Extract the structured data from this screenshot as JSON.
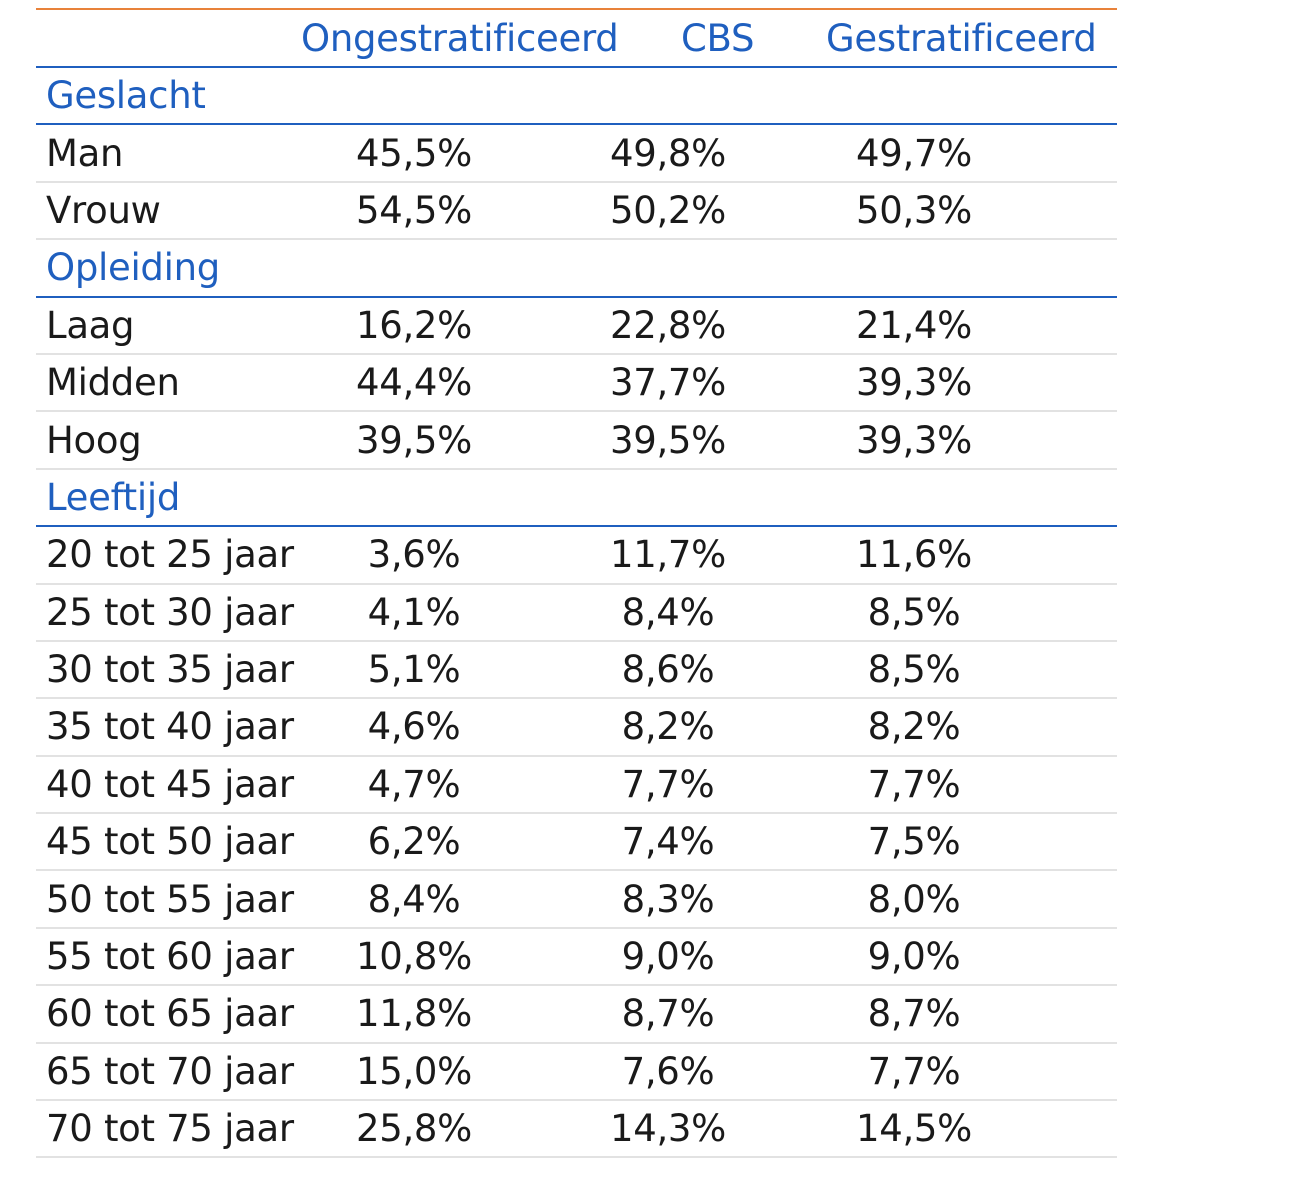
{
  "chart_data": {
    "type": "table",
    "columns": [
      "",
      "Ongestratificeerd",
      "CBS",
      "Gestratificeerd"
    ],
    "colors": {
      "heading": "#1f5fbf",
      "top_rule": "#e8823a",
      "row_rule": "#e2e2e2"
    },
    "sections": [
      {
        "title": "Geslacht",
        "rows": [
          {
            "label": "Man",
            "values": [
              "45,5%",
              "49,8%",
              "49,7%"
            ]
          },
          {
            "label": "Vrouw",
            "values": [
              "54,5%",
              "50,2%",
              "50,3%"
            ]
          }
        ]
      },
      {
        "title": "Opleiding",
        "rows": [
          {
            "label": "Laag",
            "values": [
              "16,2%",
              "22,8%",
              "21,4%"
            ]
          },
          {
            "label": "Midden",
            "values": [
              "44,4%",
              "37,7%",
              "39,3%"
            ]
          },
          {
            "label": "Hoog",
            "values": [
              "39,5%",
              "39,5%",
              "39,3%"
            ]
          }
        ]
      },
      {
        "title": "Leeftijd",
        "rows": [
          {
            "label": "20 tot 25 jaar",
            "values": [
              "3,6%",
              "11,7%",
              "11,6%"
            ]
          },
          {
            "label": "25 tot 30 jaar",
            "values": [
              "4,1%",
              "8,4%",
              "8,5%"
            ]
          },
          {
            "label": "30 tot 35 jaar",
            "values": [
              "5,1%",
              "8,6%",
              "8,5%"
            ]
          },
          {
            "label": "35 tot 40 jaar",
            "values": [
              "4,6%",
              "8,2%",
              "8,2%"
            ]
          },
          {
            "label": "40 tot 45 jaar",
            "values": [
              "4,7%",
              "7,7%",
              "7,7%"
            ]
          },
          {
            "label": "45 tot 50 jaar",
            "values": [
              "6,2%",
              "7,4%",
              "7,5%"
            ]
          },
          {
            "label": "50 tot 55 jaar",
            "values": [
              "8,4%",
              "8,3%",
              "8,0%"
            ]
          },
          {
            "label": "55 tot 60 jaar",
            "values": [
              "10,8%",
              "9,0%",
              "9,0%"
            ]
          },
          {
            "label": "60 tot 65 jaar",
            "values": [
              "11,8%",
              "8,7%",
              "8,7%"
            ]
          },
          {
            "label": "65 tot 70 jaar",
            "values": [
              "15,0%",
              "7,6%",
              "7,7%"
            ]
          },
          {
            "label": "70 tot 75 jaar",
            "values": [
              "25,8%",
              "14,3%",
              "14,5%"
            ]
          }
        ]
      }
    ]
  }
}
